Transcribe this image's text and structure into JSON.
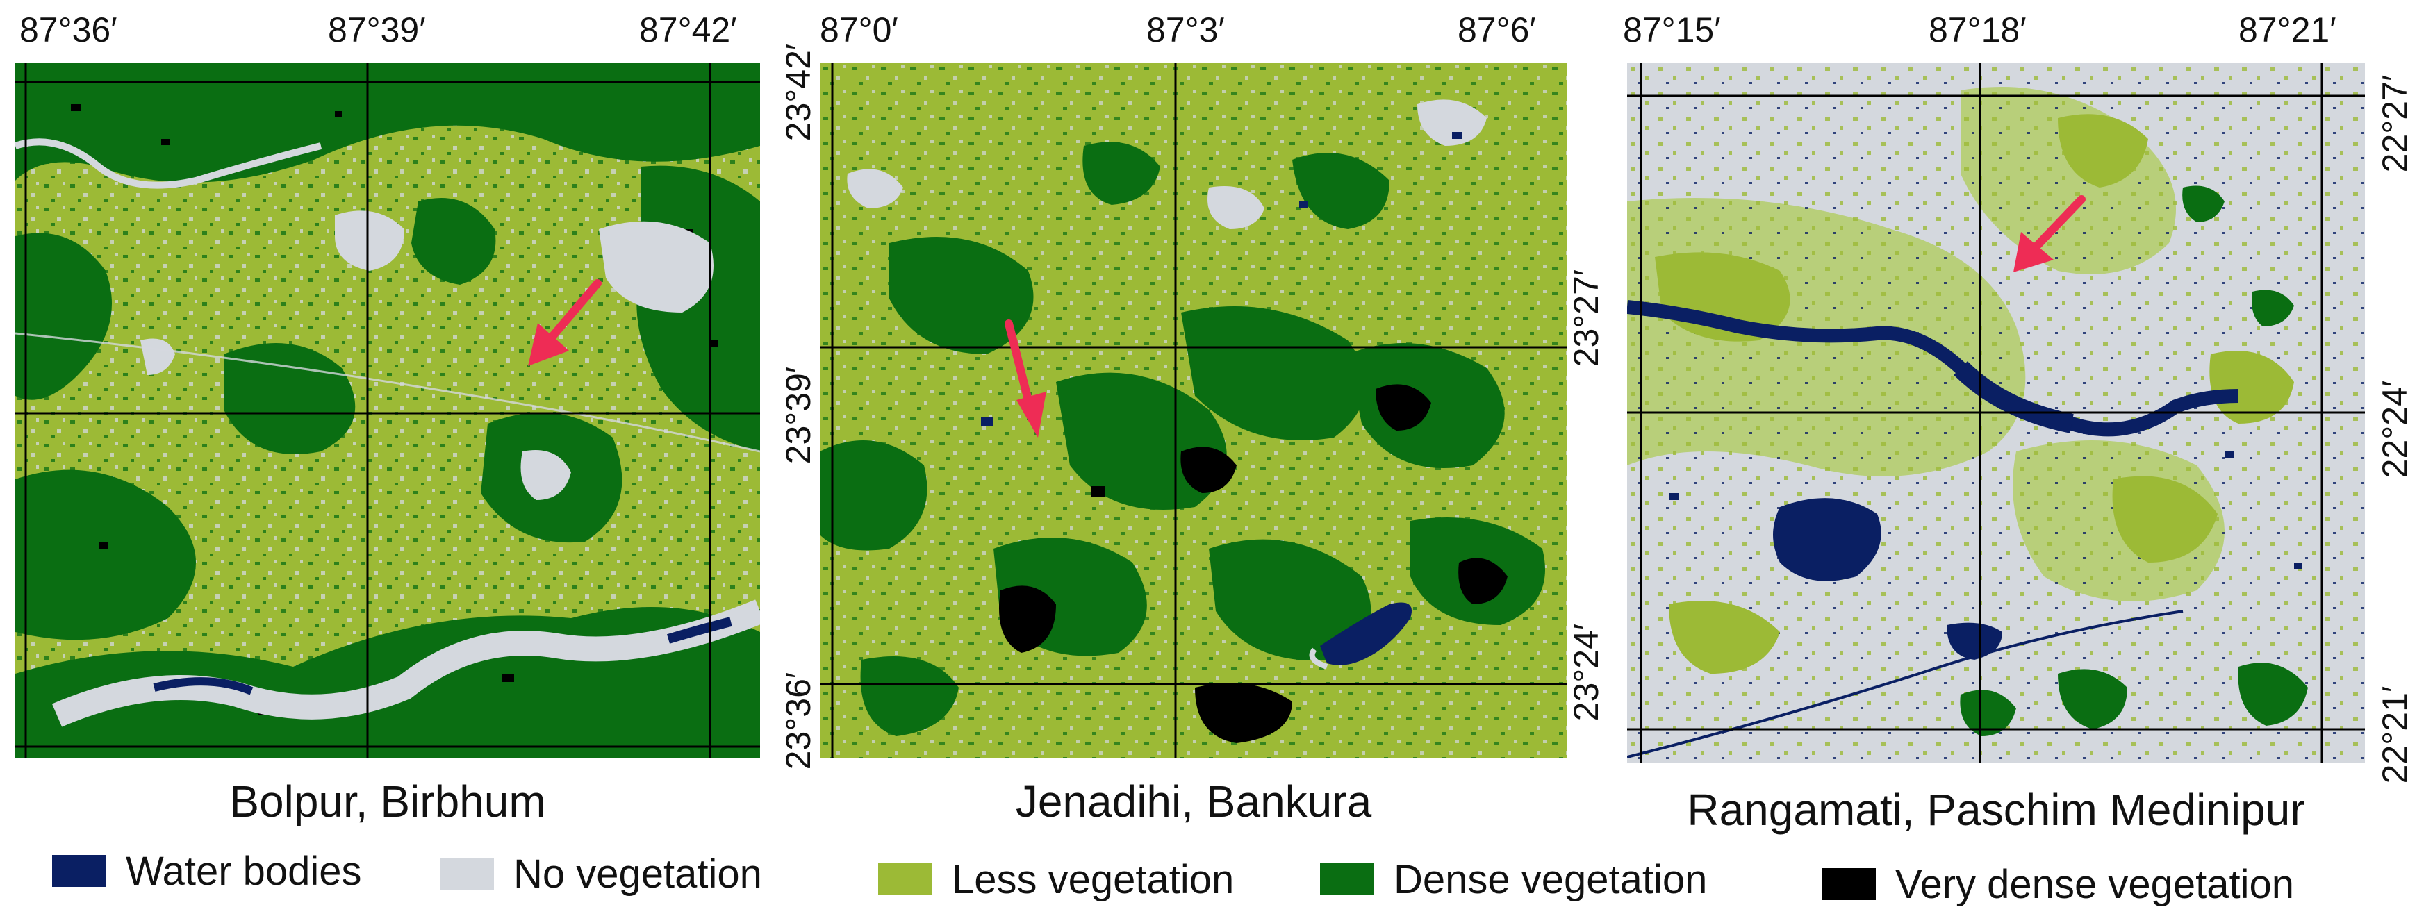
{
  "panels": [
    {
      "caption": "Bolpur, Birbhum",
      "top_ticks": [
        "87°36′",
        "87°39′",
        "87°42′"
      ],
      "right_ticks": [
        "23°42′",
        "23°39′",
        "23°36′"
      ]
    },
    {
      "caption": "Jenadihi, Bankura",
      "top_ticks": [
        "87°0′",
        "87°3′",
        "87°6′"
      ],
      "left_ticks": [
        "23°27′",
        "23°24′"
      ]
    },
    {
      "caption": "Rangamati, Paschim Medinipur",
      "top_ticks": [
        "87°15′",
        "87°18′",
        "87°21′"
      ],
      "right_ticks": [
        "22°27′",
        "22°24′",
        "22°21′"
      ]
    }
  ],
  "legend": [
    {
      "label": "Water bodies",
      "color": "#0a1f63"
    },
    {
      "label": "No vegetation",
      "color": "#d4d8de"
    },
    {
      "label": "Less vegetation",
      "color": "#9cba36"
    },
    {
      "label": "Dense vegetation",
      "color": "#0a6e12"
    },
    {
      "label": "Very dense vegetation",
      "color": "#000000"
    }
  ],
  "colors": {
    "water": "#0a1f63",
    "no_vegetation": "#d4d8de",
    "less_vegetation": "#9cba36",
    "dense_vegetation": "#0a6e12",
    "very_dense_vegetation": "#000000",
    "arrow": "#ee2c55",
    "grid": "#000000"
  }
}
